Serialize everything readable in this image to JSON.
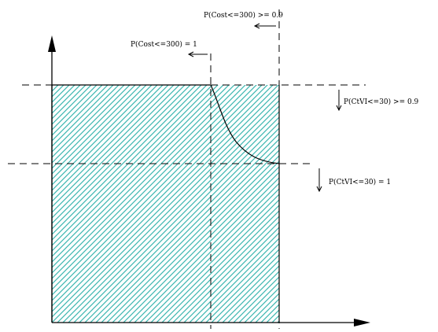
{
  "labels": {
    "cost_ge_09": "P(Cost<=300) >= 0.9",
    "cost_eq_1": "P(Cost<=300) = 1",
    "ctvi_ge_09": "P(CtVI<=30) >= 0.9",
    "ctvi_eq_1": "P(CtVI<=30) = 1"
  },
  "colors": {
    "hatch": "#3cb6b0",
    "line": "#000000"
  }
}
